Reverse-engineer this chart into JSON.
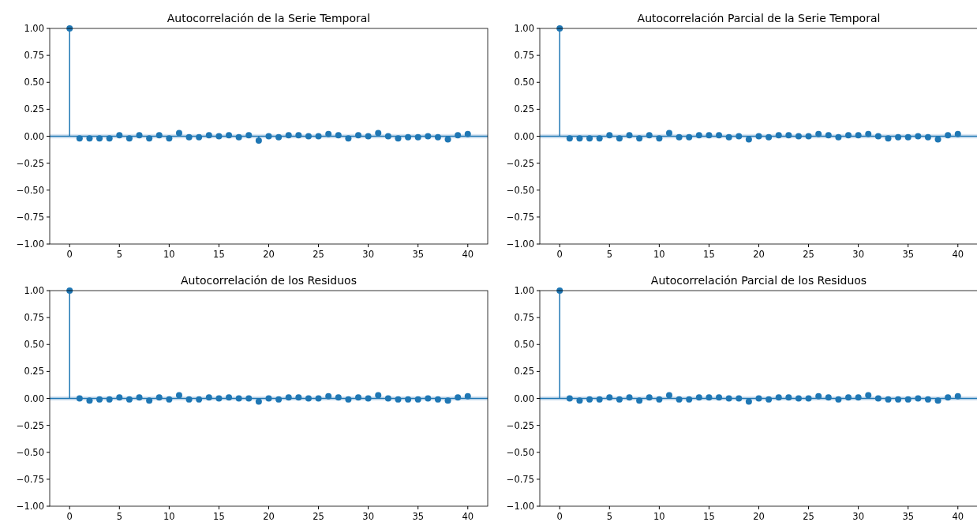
{
  "chart_data": [
    {
      "type": "lollipop",
      "title": "Autocorrelación de la Serie Temporal",
      "x": [
        0,
        1,
        2,
        3,
        4,
        5,
        6,
        7,
        8,
        9,
        10,
        11,
        12,
        13,
        14,
        15,
        16,
        17,
        18,
        19,
        20,
        21,
        22,
        23,
        24,
        25,
        26,
        27,
        28,
        29,
        30,
        31,
        32,
        33,
        34,
        35,
        36,
        37,
        38,
        39,
        40
      ],
      "series": [
        {
          "color": "#1f77b4",
          "values": [
            1,
            -0.02,
            -0.02,
            -0.02,
            -0.02,
            0.01,
            -0.02,
            0.01,
            -0.02,
            0.01,
            -0.02,
            0.03,
            -0.01,
            -0.01,
            0.01,
            0,
            0.01,
            -0.01,
            0.01,
            -0.04,
            0,
            -0.01,
            0.01,
            0.01,
            0,
            0,
            0.02,
            0.01,
            -0.02,
            0.01,
            0,
            0.03,
            0,
            -0.02,
            -0.01,
            -0.01,
            0,
            -0.01,
            -0.03,
            0.01,
            0.02
          ]
        }
      ],
      "xlim": [
        -2,
        42
      ],
      "xticks": [
        0,
        5,
        10,
        15,
        20,
        25,
        30,
        35,
        40
      ],
      "ylim": [
        -1,
        1
      ],
      "yticks": [
        {
          "value": -1,
          "label": "−1.00"
        },
        {
          "value": -0.75,
          "label": "−0.75"
        },
        {
          "value": -0.5,
          "label": "−0.50"
        },
        {
          "value": -0.25,
          "label": "−0.25"
        },
        {
          "value": 0,
          "label": "0.00"
        },
        {
          "value": 0.25,
          "label": "0.25"
        },
        {
          "value": 0.5,
          "label": "0.50"
        },
        {
          "value": 0.75,
          "label": "0.75"
        },
        {
          "value": 1,
          "label": "1.00"
        }
      ],
      "ref_lines": [
        {
          "axis": "y",
          "value": 0,
          "color": "#1f77b4"
        }
      ],
      "bands": [
        {
          "axis": "y",
          "from": -0.02,
          "to": 0.02,
          "color": "#c6d9ec"
        }
      ],
      "marker": "circle",
      "grid": false
    },
    {
      "type": "lollipop",
      "title": "Autocorrelación Parcial de la Serie Temporal",
      "x": [
        0,
        1,
        2,
        3,
        4,
        5,
        6,
        7,
        8,
        9,
        10,
        11,
        12,
        13,
        14,
        15,
        16,
        17,
        18,
        19,
        20,
        21,
        22,
        23,
        24,
        25,
        26,
        27,
        28,
        29,
        30,
        31,
        32,
        33,
        34,
        35,
        36,
        37,
        38,
        39,
        40
      ],
      "series": [
        {
          "color": "#1f77b4",
          "values": [
            1,
            -0.02,
            -0.02,
            -0.02,
            -0.02,
            0.01,
            -0.02,
            0.01,
            -0.02,
            0.01,
            -0.02,
            0.03,
            -0.01,
            -0.01,
            0.01,
            0.01,
            0.01,
            -0.01,
            0,
            -0.03,
            0,
            -0.01,
            0.01,
            0.01,
            0,
            0,
            0.02,
            0.01,
            -0.01,
            0.01,
            0.01,
            0.02,
            0,
            -0.02,
            -0.01,
            -0.01,
            0,
            -0.01,
            -0.03,
            0.01,
            0.02
          ]
        }
      ],
      "xlim": [
        -2,
        42
      ],
      "xticks": [
        0,
        5,
        10,
        15,
        20,
        25,
        30,
        35,
        40
      ],
      "ylim": [
        -1,
        1
      ],
      "yticks": [
        {
          "value": -1,
          "label": "−1.00"
        },
        {
          "value": -0.75,
          "label": "−0.75"
        },
        {
          "value": -0.5,
          "label": "−0.50"
        },
        {
          "value": -0.25,
          "label": "−0.25"
        },
        {
          "value": 0,
          "label": "0.00"
        },
        {
          "value": 0.25,
          "label": "0.25"
        },
        {
          "value": 0.5,
          "label": "0.50"
        },
        {
          "value": 0.75,
          "label": "0.75"
        },
        {
          "value": 1,
          "label": "1.00"
        }
      ],
      "ref_lines": [
        {
          "axis": "y",
          "value": 0,
          "color": "#1f77b4"
        }
      ],
      "bands": [
        {
          "axis": "y",
          "from": -0.02,
          "to": 0.02,
          "color": "#c6d9ec"
        }
      ],
      "marker": "circle",
      "grid": false
    },
    {
      "type": "lollipop",
      "title": "Autocorrelación de los Residuos",
      "x": [
        0,
        1,
        2,
        3,
        4,
        5,
        6,
        7,
        8,
        9,
        10,
        11,
        12,
        13,
        14,
        15,
        16,
        17,
        18,
        19,
        20,
        21,
        22,
        23,
        24,
        25,
        26,
        27,
        28,
        29,
        30,
        31,
        32,
        33,
        34,
        35,
        36,
        37,
        38,
        39,
        40
      ],
      "series": [
        {
          "color": "#1f77b4",
          "values": [
            1,
            0,
            -0.02,
            -0.01,
            -0.01,
            0.01,
            -0.01,
            0.01,
            -0.02,
            0.01,
            -0.01,
            0.03,
            -0.01,
            -0.01,
            0.01,
            0,
            0.01,
            0,
            0,
            -0.03,
            0,
            -0.01,
            0.01,
            0.01,
            0,
            0,
            0.02,
            0.01,
            -0.01,
            0.01,
            0,
            0.03,
            0,
            -0.01,
            -0.01,
            -0.01,
            0,
            -0.01,
            -0.02,
            0.01,
            0.02
          ]
        }
      ],
      "xlim": [
        -2,
        42
      ],
      "xticks": [
        0,
        5,
        10,
        15,
        20,
        25,
        30,
        35,
        40
      ],
      "ylim": [
        -1,
        1
      ],
      "yticks": [
        {
          "value": -1,
          "label": "−1.00"
        },
        {
          "value": -0.75,
          "label": "−0.75"
        },
        {
          "value": -0.5,
          "label": "−0.50"
        },
        {
          "value": -0.25,
          "label": "−0.25"
        },
        {
          "value": 0,
          "label": "0.00"
        },
        {
          "value": 0.25,
          "label": "0.25"
        },
        {
          "value": 0.5,
          "label": "0.50"
        },
        {
          "value": 0.75,
          "label": "0.75"
        },
        {
          "value": 1,
          "label": "1.00"
        }
      ],
      "ref_lines": [
        {
          "axis": "y",
          "value": 0,
          "color": "#1f77b4"
        }
      ],
      "bands": [
        {
          "axis": "y",
          "from": -0.02,
          "to": 0.02,
          "color": "#c6d9ec"
        }
      ],
      "marker": "circle",
      "grid": false
    },
    {
      "type": "lollipop",
      "title": "Autocorrelación Parcial de los Residuos",
      "x": [
        0,
        1,
        2,
        3,
        4,
        5,
        6,
        7,
        8,
        9,
        10,
        11,
        12,
        13,
        14,
        15,
        16,
        17,
        18,
        19,
        20,
        21,
        22,
        23,
        24,
        25,
        26,
        27,
        28,
        29,
        30,
        31,
        32,
        33,
        34,
        35,
        36,
        37,
        38,
        39,
        40
      ],
      "series": [
        {
          "color": "#1f77b4",
          "values": [
            1,
            0,
            -0.02,
            -0.01,
            -0.01,
            0.01,
            -0.01,
            0.01,
            -0.02,
            0.01,
            -0.01,
            0.03,
            -0.01,
            -0.01,
            0.01,
            0.01,
            0.01,
            0,
            0,
            -0.03,
            0,
            -0.01,
            0.01,
            0.01,
            0,
            0,
            0.02,
            0.01,
            -0.01,
            0.01,
            0.01,
            0.03,
            0,
            -0.01,
            -0.01,
            -0.01,
            0,
            -0.01,
            -0.02,
            0.01,
            0.02
          ]
        }
      ],
      "xlim": [
        -2,
        42
      ],
      "xticks": [
        0,
        5,
        10,
        15,
        20,
        25,
        30,
        35,
        40
      ],
      "ylim": [
        -1,
        1
      ],
      "yticks": [
        {
          "value": -1,
          "label": "−1.00"
        },
        {
          "value": -0.75,
          "label": "−0.75"
        },
        {
          "value": -0.5,
          "label": "−0.50"
        },
        {
          "value": -0.25,
          "label": "−0.25"
        },
        {
          "value": 0,
          "label": "0.00"
        },
        {
          "value": 0.25,
          "label": "0.25"
        },
        {
          "value": 0.5,
          "label": "0.50"
        },
        {
          "value": 0.75,
          "label": "0.75"
        },
        {
          "value": 1,
          "label": "1.00"
        }
      ],
      "ref_lines": [
        {
          "axis": "y",
          "value": 0,
          "color": "#1f77b4"
        }
      ],
      "bands": [
        {
          "axis": "y",
          "from": -0.02,
          "to": 0.02,
          "color": "#c6d9ec"
        }
      ],
      "marker": "circle",
      "grid": false
    }
  ]
}
